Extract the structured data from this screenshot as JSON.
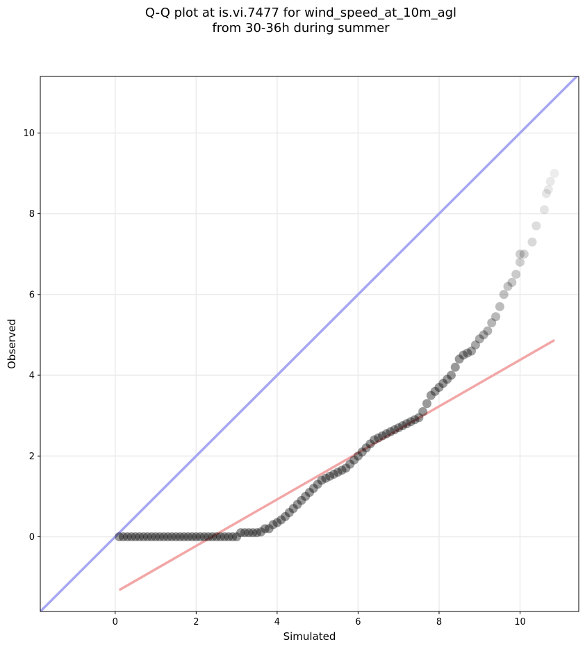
{
  "chart_data": {
    "type": "scatter",
    "title": "Q-Q plot at is.vi.7477 for wind_speed_at_10m_agl",
    "subtitle": "from 30-36h during summer",
    "xlabel": "Simulated",
    "ylabel": "Observed",
    "xlim": [
      -1.85,
      11.45
    ],
    "ylim": [
      -1.85,
      11.4
    ],
    "xticks": [
      0,
      2,
      4,
      6,
      8,
      10
    ],
    "yticks": [
      0,
      2,
      4,
      6,
      8,
      10
    ],
    "grid": true,
    "reference_lines": [
      {
        "name": "1:1 line",
        "color": "#a6a6f2",
        "points": [
          [
            -1.85,
            -1.85
          ],
          [
            11.45,
            11.45
          ]
        ]
      },
      {
        "name": "fit line",
        "color": "#f2a6a6",
        "points": [
          [
            0.1,
            -1.32
          ],
          [
            10.85,
            4.87
          ]
        ]
      }
    ],
    "point_color": "#000000",
    "points": [
      [
        0.1,
        0.0
      ],
      [
        0.2,
        0.0
      ],
      [
        0.3,
        0.0
      ],
      [
        0.4,
        0.0
      ],
      [
        0.5,
        0.0
      ],
      [
        0.6,
        0.0
      ],
      [
        0.7,
        0.0
      ],
      [
        0.8,
        0.0
      ],
      [
        0.9,
        0.0
      ],
      [
        1.0,
        0.0
      ],
      [
        1.1,
        0.0
      ],
      [
        1.2,
        0.0
      ],
      [
        1.3,
        0.0
      ],
      [
        1.4,
        0.0
      ],
      [
        1.5,
        0.0
      ],
      [
        1.6,
        0.0
      ],
      [
        1.7,
        0.0
      ],
      [
        1.8,
        0.0
      ],
      [
        1.9,
        0.0
      ],
      [
        2.0,
        0.0
      ],
      [
        2.1,
        0.0
      ],
      [
        2.2,
        0.0
      ],
      [
        2.3,
        0.0
      ],
      [
        2.4,
        0.0
      ],
      [
        2.5,
        0.0
      ],
      [
        2.6,
        0.0
      ],
      [
        2.7,
        0.0
      ],
      [
        2.8,
        0.0
      ],
      [
        2.9,
        0.0
      ],
      [
        3.0,
        0.0
      ],
      [
        3.1,
        0.1
      ],
      [
        3.2,
        0.1
      ],
      [
        3.3,
        0.1
      ],
      [
        3.4,
        0.1
      ],
      [
        3.5,
        0.1
      ],
      [
        3.6,
        0.12
      ],
      [
        3.7,
        0.2
      ],
      [
        3.8,
        0.2
      ],
      [
        3.9,
        0.3
      ],
      [
        4.0,
        0.35
      ],
      [
        4.1,
        0.42
      ],
      [
        4.2,
        0.5
      ],
      [
        4.3,
        0.6
      ],
      [
        4.4,
        0.7
      ],
      [
        4.5,
        0.8
      ],
      [
        4.6,
        0.9
      ],
      [
        4.7,
        1.0
      ],
      [
        4.8,
        1.1
      ],
      [
        4.9,
        1.2
      ],
      [
        5.0,
        1.3
      ],
      [
        5.1,
        1.4
      ],
      [
        5.2,
        1.45
      ],
      [
        5.3,
        1.5
      ],
      [
        5.4,
        1.55
      ],
      [
        5.5,
        1.6
      ],
      [
        5.6,
        1.65
      ],
      [
        5.7,
        1.7
      ],
      [
        5.8,
        1.8
      ],
      [
        5.9,
        1.9
      ],
      [
        6.0,
        2.0
      ],
      [
        6.1,
        2.1
      ],
      [
        6.2,
        2.2
      ],
      [
        6.3,
        2.3
      ],
      [
        6.4,
        2.4
      ],
      [
        6.5,
        2.45
      ],
      [
        6.6,
        2.5
      ],
      [
        6.7,
        2.55
      ],
      [
        6.8,
        2.6
      ],
      [
        6.9,
        2.65
      ],
      [
        7.0,
        2.7
      ],
      [
        7.1,
        2.75
      ],
      [
        7.2,
        2.8
      ],
      [
        7.3,
        2.85
      ],
      [
        7.4,
        2.9
      ],
      [
        7.5,
        2.95
      ],
      [
        7.6,
        3.1
      ],
      [
        7.7,
        3.3
      ],
      [
        7.8,
        3.5
      ],
      [
        7.9,
        3.6
      ],
      [
        8.0,
        3.7
      ],
      [
        8.1,
        3.8
      ],
      [
        8.2,
        3.9
      ],
      [
        8.3,
        4.0
      ],
      [
        8.4,
        4.2
      ],
      [
        8.5,
        4.4
      ],
      [
        8.6,
        4.5
      ],
      [
        8.7,
        4.55
      ],
      [
        8.8,
        4.6
      ],
      [
        8.9,
        4.75
      ],
      [
        9.0,
        4.9
      ],
      [
        9.1,
        5.0
      ],
      [
        9.2,
        5.1
      ],
      [
        9.3,
        5.3
      ],
      [
        9.4,
        5.45
      ],
      [
        9.5,
        5.7
      ],
      [
        9.6,
        6.0
      ],
      [
        9.7,
        6.2
      ],
      [
        9.8,
        6.3
      ],
      [
        9.9,
        6.5
      ],
      [
        10.0,
        6.8
      ],
      [
        10.0,
        7.0
      ],
      [
        10.1,
        7.0
      ],
      [
        10.3,
        7.3
      ],
      [
        10.4,
        7.7
      ],
      [
        10.6,
        8.1
      ],
      [
        10.65,
        8.5
      ],
      [
        10.7,
        8.6
      ],
      [
        10.75,
        8.8
      ],
      [
        10.85,
        9.0
      ]
    ]
  }
}
